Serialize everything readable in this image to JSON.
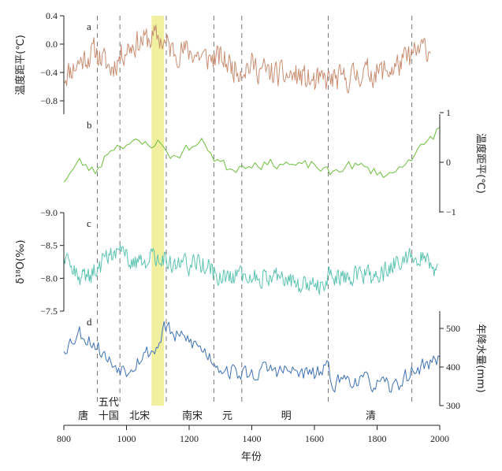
{
  "chart_data": {
    "type": "line",
    "x_axis": {
      "label": "年份",
      "range": [
        800,
        2000
      ],
      "ticks": [
        800,
        1000,
        1200,
        1400,
        1600,
        1800,
        2000
      ],
      "tick_labels": [
        "800",
        "1000",
        "1200",
        "1400",
        "1600",
        "1800",
        "2000"
      ]
    },
    "highlight_band": {
      "from": 1080,
      "to": 1120,
      "color": "#f0f0a0"
    },
    "dashed_boundaries": [
      907,
      979,
      1127,
      1279,
      1368,
      1644,
      1911
    ],
    "periods": [
      {
        "label": "唐",
        "x": 862
      },
      {
        "label": "五代",
        "x": 943,
        "line": 1
      },
      {
        "label": "十国",
        "x": 943,
        "line": 2
      },
      {
        "label": "北宋",
        "x": 1042
      },
      {
        "label": "南宋",
        "x": 1210
      },
      {
        "label": "元",
        "x": 1322
      },
      {
        "label": "明",
        "x": 1510
      },
      {
        "label": "清",
        "x": 1780
      }
    ],
    "panels": [
      {
        "id": "a",
        "label": "a",
        "color": "#c98e72",
        "ylabel": "温度距平(℃)",
        "axis_side": "left",
        "ylim": [
          -1.0,
          0.4
        ],
        "ticks": [
          0.4,
          0.0,
          -0.4,
          -0.8
        ],
        "tick_labels": [
          "0.4",
          "0.0",
          "−0.4",
          "−0.8"
        ],
        "x_start": 800,
        "x_end": 1970,
        "step": 3,
        "anchors": [
          [
            800,
            -0.45
          ],
          [
            850,
            -0.25
          ],
          [
            900,
            -0.1
          ],
          [
            950,
            -0.35
          ],
          [
            1000,
            -0.05
          ],
          [
            1050,
            0.05
          ],
          [
            1100,
            0.1
          ],
          [
            1150,
            -0.1
          ],
          [
            1200,
            -0.1
          ],
          [
            1250,
            -0.2
          ],
          [
            1300,
            -0.2
          ],
          [
            1350,
            -0.35
          ],
          [
            1400,
            -0.3
          ],
          [
            1450,
            -0.4
          ],
          [
            1500,
            -0.45
          ],
          [
            1550,
            -0.45
          ],
          [
            1600,
            -0.55
          ],
          [
            1650,
            -0.5
          ],
          [
            1700,
            -0.5
          ],
          [
            1750,
            -0.4
          ],
          [
            1800,
            -0.4
          ],
          [
            1850,
            -0.35
          ],
          [
            1900,
            -0.2
          ],
          [
            1950,
            -0.05
          ],
          [
            1970,
            -0.1
          ]
        ],
        "noise": 0.17,
        "seed": 11
      },
      {
        "id": "b",
        "label": "b",
        "color": "#6cbf3c",
        "ylabel": "温度距平(℃)",
        "axis_side": "right",
        "ylim": [
          -1.0,
          1.0
        ],
        "ticks": [
          1,
          0,
          -1
        ],
        "tick_labels": [
          "1",
          "0",
          "−1"
        ],
        "x_start": 800,
        "x_end": 2000,
        "step": 10,
        "anchors": [
          [
            800,
            -0.35
          ],
          [
            850,
            0.0
          ],
          [
            900,
            -0.2
          ],
          [
            950,
            0.3
          ],
          [
            1000,
            0.4
          ],
          [
            1050,
            0.35
          ],
          [
            1100,
            0.4
          ],
          [
            1150,
            0.1
          ],
          [
            1200,
            0.3
          ],
          [
            1250,
            0.4
          ],
          [
            1280,
            0.1
          ],
          [
            1320,
            -0.1
          ],
          [
            1350,
            -0.1
          ],
          [
            1400,
            0.0
          ],
          [
            1450,
            -0.05
          ],
          [
            1500,
            0.0
          ],
          [
            1550,
            -0.1
          ],
          [
            1600,
            -0.05
          ],
          [
            1650,
            -0.25
          ],
          [
            1700,
            -0.05
          ],
          [
            1750,
            -0.1
          ],
          [
            1800,
            -0.2
          ],
          [
            1850,
            -0.25
          ],
          [
            1900,
            0.1
          ],
          [
            1950,
            0.3
          ],
          [
            2000,
            0.7
          ]
        ],
        "noise": 0.1,
        "seed": 23
      },
      {
        "id": "c",
        "label": "c",
        "color": "#5cc3b1",
        "ylabel": "δ¹⁸O(‰)",
        "axis_side": "left",
        "ylim": [
          -9.0,
          -7.5
        ],
        "inverted": true,
        "ticks": [
          -9.0,
          -8.5,
          -8.0,
          -7.5
        ],
        "tick_labels": [
          "−9.0",
          "−8.5",
          "−8.0",
          "−7.5"
        ],
        "x_start": 800,
        "x_end": 1995,
        "step": 3,
        "anchors": [
          [
            800,
            -8.25
          ],
          [
            850,
            -8.0
          ],
          [
            900,
            -8.1
          ],
          [
            950,
            -8.4
          ],
          [
            1000,
            -8.35
          ],
          [
            1050,
            -8.2
          ],
          [
            1100,
            -8.35
          ],
          [
            1150,
            -8.25
          ],
          [
            1200,
            -8.2
          ],
          [
            1250,
            -8.2
          ],
          [
            1300,
            -8.0
          ],
          [
            1350,
            -8.05
          ],
          [
            1400,
            -8.0
          ],
          [
            1450,
            -8.05
          ],
          [
            1500,
            -8.0
          ],
          [
            1550,
            -7.9
          ],
          [
            1600,
            -7.85
          ],
          [
            1650,
            -8.05
          ],
          [
            1700,
            -8.0
          ],
          [
            1750,
            -8.1
          ],
          [
            1800,
            -8.0
          ],
          [
            1850,
            -8.2
          ],
          [
            1900,
            -8.35
          ],
          [
            1950,
            -8.35
          ],
          [
            1995,
            -8.1
          ]
        ],
        "noise": 0.14,
        "seed": 37
      },
      {
        "id": "d",
        "label": "d",
        "color": "#3f72b5",
        "ylabel": "年降水量(mm)",
        "axis_side": "right",
        "ylim": [
          300,
          550
        ],
        "ticks": [
          500,
          400,
          300
        ],
        "tick_labels": [
          "500",
          "400",
          "300"
        ],
        "x_start": 800,
        "x_end": 2000,
        "step": 5,
        "anchors": [
          [
            800,
            450
          ],
          [
            850,
            490
          ],
          [
            900,
            460
          ],
          [
            950,
            410
          ],
          [
            1000,
            395
          ],
          [
            1050,
            430
          ],
          [
            1100,
            450
          ],
          [
            1120,
            510
          ],
          [
            1150,
            480
          ],
          [
            1200,
            470
          ],
          [
            1250,
            440
          ],
          [
            1300,
            400
          ],
          [
            1350,
            385
          ],
          [
            1400,
            380
          ],
          [
            1450,
            395
          ],
          [
            1500,
            390
          ],
          [
            1550,
            385
          ],
          [
            1600,
            380
          ],
          [
            1640,
            395
          ],
          [
            1660,
            360
          ],
          [
            1700,
            370
          ],
          [
            1750,
            365
          ],
          [
            1800,
            355
          ],
          [
            1850,
            345
          ],
          [
            1900,
            380
          ],
          [
            1950,
            405
          ],
          [
            2000,
            420
          ]
        ],
        "noise": 20,
        "seed": 53
      }
    ]
  }
}
